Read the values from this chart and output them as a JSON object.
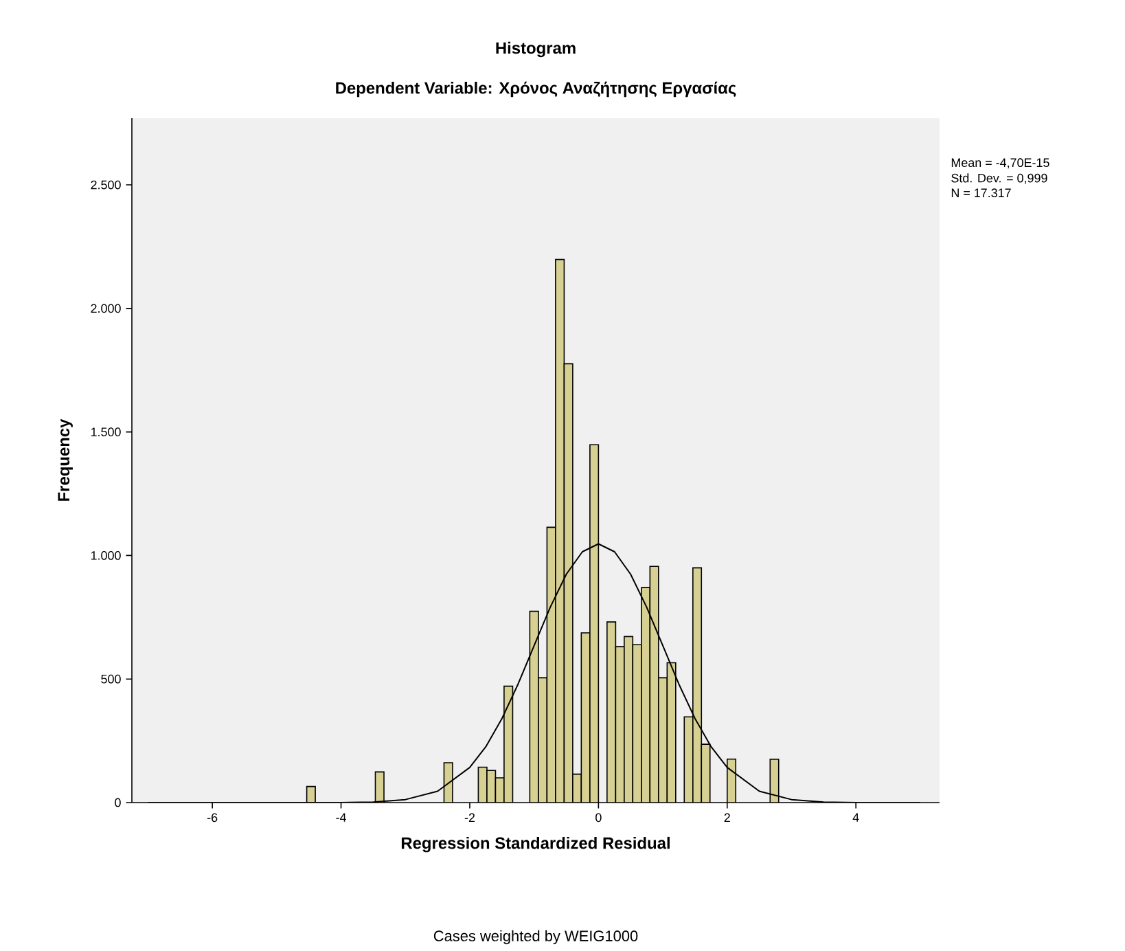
{
  "chart_data": {
    "type": "histogram",
    "title": "Histogram",
    "subtitle": "Dependent Variable: Χρόνος Αναζήτησης Εργασίας",
    "xlabel": "Regression Standardized Residual",
    "ylabel": "Frequency",
    "annotations": [
      "Mean = -4,70E-15",
      "Std. Dev. = 0,999",
      "N = 17.317",
      "Cases weighted by WEIG1000"
    ],
    "bins": [
      -4.533,
      -4.4,
      -4.267,
      -4.133,
      -4.0,
      -3.867,
      -3.733,
      -3.6,
      -3.467,
      -3.333,
      -3.2,
      -3.067,
      -2.933,
      -2.8,
      -2.667,
      -2.533,
      -2.4,
      -2.267,
      -2.133,
      -2.0,
      -1.867,
      -1.733,
      -1.6,
      -1.467,
      -1.333,
      -1.2,
      -1.067,
      -0.933,
      -0.8,
      -0.667,
      -0.533,
      -0.4,
      -0.267,
      -0.133,
      0.0,
      0.133,
      0.267,
      0.4,
      0.533,
      0.667,
      0.8,
      0.933,
      1.067,
      1.2,
      1.333,
      1.467,
      1.6,
      1.733,
      1.867,
      2.0,
      2.133,
      2.267,
      2.4,
      2.533,
      2.667,
      2.8
    ],
    "values": [
      65,
      0,
      0,
      0,
      0,
      0,
      0,
      0,
      124,
      0,
      0,
      0,
      0,
      0,
      0,
      0,
      161,
      0,
      0,
      0,
      143,
      130,
      100,
      471,
      0,
      0,
      774,
      505,
      1114,
      2198,
      1776,
      115,
      687,
      1448,
      0,
      731,
      631,
      672,
      639,
      870,
      956,
      505,
      566,
      0,
      347,
      950,
      236,
      0,
      0,
      176,
      0,
      0,
      0,
      0,
      175
    ],
    "color": "#d6d092",
    "series": [
      {
        "type": "line",
        "color": "#000000",
        "x": [
          -7,
          -4,
          -3.5,
          -3,
          -2.5,
          -2,
          -1.75,
          -1.5,
          -1.25,
          -1,
          -0.75,
          -0.5,
          -0.25,
          0,
          0.25,
          0.5,
          0.75,
          1,
          1.25,
          1.5,
          1.75,
          2,
          2.5,
          3,
          3.5,
          4,
          5
        ],
        "values": [
          0,
          0,
          2,
          12,
          46,
          142,
          226,
          340,
          479,
          635,
          790,
          924,
          1015,
          1047,
          1015,
          924,
          790,
          635,
          479,
          340,
          226,
          142,
          46,
          12,
          2,
          0,
          0
        ]
      }
    ],
    "xlim": [
      -7.25,
      5.3
    ],
    "ylim": [
      0,
      2770
    ],
    "xticks": [
      -6,
      -4,
      -2,
      0,
      2,
      4
    ],
    "yticks": [
      0,
      {
        "value": 500,
        "label": "500"
      },
      {
        "value": 1000,
        "label": "1.000"
      },
      {
        "value": 1500,
        "label": "1.500"
      },
      {
        "value": 2000,
        "label": "2.000"
      },
      {
        "value": 2500,
        "label": "2.500"
      }
    ],
    "grid": false
  }
}
